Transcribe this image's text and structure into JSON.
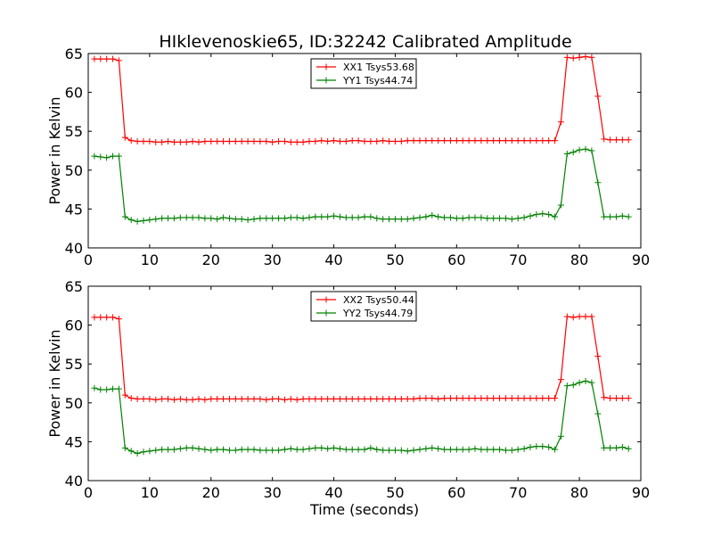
{
  "title": "HIklevenoskie65, ID:32242 Calibrated Amplitude",
  "chart_data": [
    {
      "type": "line",
      "ylabel": "Power in Kelvin",
      "xlabel": "",
      "xlim": [
        0,
        90
      ],
      "ylim": [
        40,
        65
      ],
      "xticks": [
        "0",
        "10",
        "20",
        "30",
        "40",
        "50",
        "60",
        "70",
        "80",
        "90"
      ],
      "yticks": [
        "40",
        "45",
        "50",
        "55",
        "60",
        "65"
      ],
      "grid": false,
      "legend_position": "top-center",
      "series": [
        {
          "name": "XX1 Tsys53.68",
          "color": "#ff0000",
          "x": [
            1,
            2,
            3,
            4,
            5,
            6,
            7,
            8,
            9,
            10,
            11,
            12,
            13,
            14,
            15,
            16,
            17,
            18,
            19,
            20,
            21,
            22,
            23,
            24,
            25,
            26,
            27,
            28,
            29,
            30,
            31,
            32,
            33,
            34,
            35,
            36,
            37,
            38,
            39,
            40,
            41,
            42,
            43,
            44,
            45,
            46,
            47,
            48,
            49,
            50,
            51,
            52,
            53,
            54,
            55,
            56,
            57,
            58,
            59,
            60,
            61,
            62,
            63,
            64,
            65,
            66,
            67,
            68,
            69,
            70,
            71,
            72,
            73,
            74,
            75,
            76,
            77,
            78,
            79,
            80,
            81,
            82,
            83,
            84,
            85,
            86,
            87,
            88
          ],
          "y": [
            64.3,
            64.3,
            64.3,
            64.3,
            64.1,
            54.2,
            53.8,
            53.7,
            53.7,
            53.7,
            53.6,
            53.6,
            53.7,
            53.6,
            53.6,
            53.6,
            53.7,
            53.6,
            53.7,
            53.7,
            53.7,
            53.7,
            53.7,
            53.7,
            53.7,
            53.7,
            53.7,
            53.7,
            53.7,
            53.6,
            53.7,
            53.7,
            53.6,
            53.6,
            53.6,
            53.7,
            53.7,
            53.8,
            53.7,
            53.8,
            53.7,
            53.7,
            53.8,
            53.8,
            53.7,
            53.7,
            53.7,
            53.8,
            53.7,
            53.7,
            53.7,
            53.8,
            53.8,
            53.8,
            53.8,
            53.8,
            53.8,
            53.8,
            53.8,
            53.8,
            53.8,
            53.8,
            53.8,
            53.8,
            53.8,
            53.8,
            53.8,
            53.8,
            53.8,
            53.8,
            53.8,
            53.8,
            53.8,
            53.8,
            53.8,
            53.8,
            56.2,
            64.5,
            64.4,
            64.5,
            64.6,
            64.5,
            59.5,
            54.0,
            53.9,
            53.9,
            53.9,
            53.9
          ]
        },
        {
          "name": "YY1 Tsys44.74",
          "color": "#008000",
          "x": [
            1,
            2,
            3,
            4,
            5,
            6,
            7,
            8,
            9,
            10,
            11,
            12,
            13,
            14,
            15,
            16,
            17,
            18,
            19,
            20,
            21,
            22,
            23,
            24,
            25,
            26,
            27,
            28,
            29,
            30,
            31,
            32,
            33,
            34,
            35,
            36,
            37,
            38,
            39,
            40,
            41,
            42,
            43,
            44,
            45,
            46,
            47,
            48,
            49,
            50,
            51,
            52,
            53,
            54,
            55,
            56,
            57,
            58,
            59,
            60,
            61,
            62,
            63,
            64,
            65,
            66,
            67,
            68,
            69,
            70,
            71,
            72,
            73,
            74,
            75,
            76,
            77,
            78,
            79,
            80,
            81,
            82,
            83,
            84,
            85,
            86,
            87,
            88
          ],
          "y": [
            51.8,
            51.7,
            51.6,
            51.8,
            51.8,
            44.0,
            43.6,
            43.4,
            43.5,
            43.6,
            43.7,
            43.8,
            43.8,
            43.8,
            43.9,
            43.9,
            43.9,
            43.9,
            43.8,
            43.8,
            43.7,
            43.9,
            43.8,
            43.7,
            43.7,
            43.6,
            43.7,
            43.8,
            43.8,
            43.8,
            43.8,
            43.8,
            43.9,
            43.9,
            43.8,
            43.9,
            44.0,
            44.0,
            44.0,
            44.1,
            44.0,
            43.9,
            43.9,
            43.9,
            44.0,
            44.0,
            43.8,
            43.7,
            43.7,
            43.7,
            43.7,
            43.7,
            43.8,
            43.9,
            44.0,
            44.2,
            44.0,
            43.9,
            43.9,
            43.8,
            43.8,
            43.9,
            43.9,
            43.9,
            43.8,
            43.8,
            43.8,
            43.8,
            43.7,
            43.8,
            43.9,
            44.1,
            44.3,
            44.4,
            44.3,
            44.0,
            45.5,
            52.1,
            52.3,
            52.6,
            52.7,
            52.5,
            48.4,
            44.0,
            44.0,
            44.0,
            44.1,
            44.0
          ]
        }
      ]
    },
    {
      "type": "line",
      "ylabel": "Power in Kelvin",
      "xlabel": "Time (seconds)",
      "xlim": [
        0,
        90
      ],
      "ylim": [
        40,
        65
      ],
      "xticks": [
        "0",
        "10",
        "20",
        "30",
        "40",
        "50",
        "60",
        "70",
        "80",
        "90"
      ],
      "yticks": [
        "40",
        "45",
        "50",
        "55",
        "60",
        "65"
      ],
      "grid": false,
      "legend_position": "top-center",
      "series": [
        {
          "name": "XX2 Tsys50.44",
          "color": "#ff0000",
          "x": [
            1,
            2,
            3,
            4,
            5,
            6,
            7,
            8,
            9,
            10,
            11,
            12,
            13,
            14,
            15,
            16,
            17,
            18,
            19,
            20,
            21,
            22,
            23,
            24,
            25,
            26,
            27,
            28,
            29,
            30,
            31,
            32,
            33,
            34,
            35,
            36,
            37,
            38,
            39,
            40,
            41,
            42,
            43,
            44,
            45,
            46,
            47,
            48,
            49,
            50,
            51,
            52,
            53,
            54,
            55,
            56,
            57,
            58,
            59,
            60,
            61,
            62,
            63,
            64,
            65,
            66,
            67,
            68,
            69,
            70,
            71,
            72,
            73,
            74,
            75,
            76,
            77,
            78,
            79,
            80,
            81,
            82,
            83,
            84,
            85,
            86,
            87,
            88
          ],
          "y": [
            61.0,
            61.0,
            61.0,
            61.0,
            60.8,
            51.0,
            50.6,
            50.5,
            50.5,
            50.5,
            50.4,
            50.5,
            50.5,
            50.4,
            50.5,
            50.4,
            50.4,
            50.5,
            50.4,
            50.5,
            50.5,
            50.5,
            50.5,
            50.5,
            50.5,
            50.5,
            50.5,
            50.5,
            50.4,
            50.5,
            50.5,
            50.4,
            50.5,
            50.4,
            50.5,
            50.5,
            50.5,
            50.5,
            50.5,
            50.5,
            50.5,
            50.5,
            50.5,
            50.5,
            50.5,
            50.5,
            50.5,
            50.5,
            50.5,
            50.5,
            50.5,
            50.5,
            50.5,
            50.6,
            50.6,
            50.6,
            50.5,
            50.6,
            50.6,
            50.6,
            50.6,
            50.6,
            50.6,
            50.6,
            50.6,
            50.6,
            50.6,
            50.6,
            50.6,
            50.6,
            50.6,
            50.6,
            50.6,
            50.6,
            50.6,
            50.6,
            53.0,
            61.1,
            61.0,
            61.1,
            61.1,
            61.1,
            56.0,
            50.7,
            50.6,
            50.6,
            50.6,
            50.6
          ]
        },
        {
          "name": "YY2 Tsys44.79",
          "color": "#008000",
          "x": [
            1,
            2,
            3,
            4,
            5,
            6,
            7,
            8,
            9,
            10,
            11,
            12,
            13,
            14,
            15,
            16,
            17,
            18,
            19,
            20,
            21,
            22,
            23,
            24,
            25,
            26,
            27,
            28,
            29,
            30,
            31,
            32,
            33,
            34,
            35,
            36,
            37,
            38,
            39,
            40,
            41,
            42,
            43,
            44,
            45,
            46,
            47,
            48,
            49,
            50,
            51,
            52,
            53,
            54,
            55,
            56,
            57,
            58,
            59,
            60,
            61,
            62,
            63,
            64,
            65,
            66,
            67,
            68,
            69,
            70,
            71,
            72,
            73,
            74,
            75,
            76,
            77,
            78,
            79,
            80,
            81,
            82,
            83,
            84,
            85,
            86,
            87,
            88
          ],
          "y": [
            51.9,
            51.7,
            51.7,
            51.8,
            51.8,
            44.2,
            43.8,
            43.5,
            43.7,
            43.8,
            43.9,
            44.0,
            44.0,
            44.0,
            44.1,
            44.2,
            44.2,
            44.1,
            44.0,
            43.9,
            44.0,
            44.0,
            43.9,
            43.9,
            44.0,
            44.0,
            44.0,
            43.9,
            43.9,
            43.9,
            43.9,
            44.0,
            44.1,
            44.0,
            44.0,
            44.1,
            44.2,
            44.2,
            44.1,
            44.2,
            44.1,
            44.0,
            44.0,
            44.0,
            44.0,
            44.2,
            44.0,
            43.9,
            43.9,
            43.9,
            43.9,
            43.8,
            43.9,
            44.0,
            44.1,
            44.2,
            44.1,
            44.0,
            44.0,
            44.0,
            44.0,
            44.0,
            44.1,
            44.0,
            44.0,
            44.0,
            44.0,
            43.9,
            43.9,
            44.0,
            44.1,
            44.3,
            44.4,
            44.4,
            44.3,
            44.0,
            45.7,
            52.2,
            52.3,
            52.6,
            52.8,
            52.6,
            48.6,
            44.2,
            44.2,
            44.2,
            44.3,
            44.1
          ]
        }
      ]
    }
  ]
}
